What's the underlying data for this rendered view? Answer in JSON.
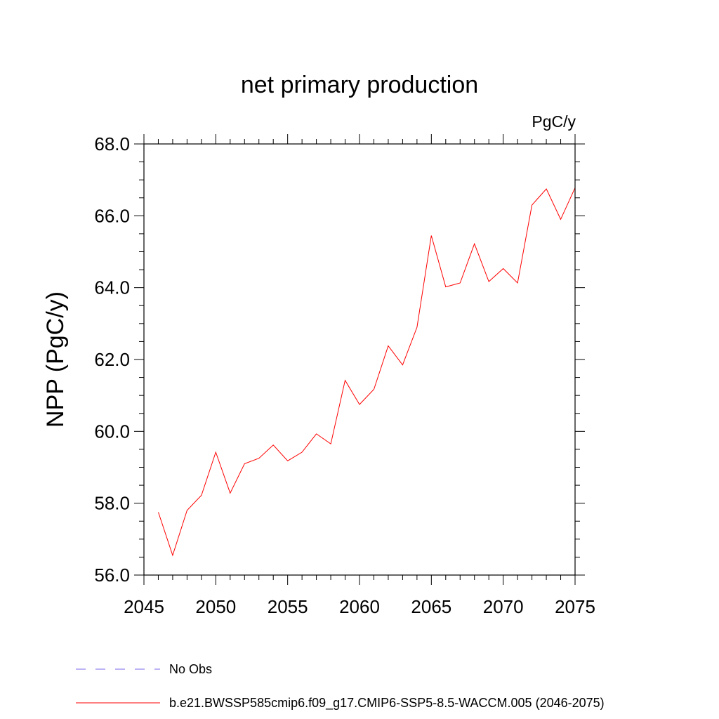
{
  "chart_data": {
    "type": "line",
    "title": "net primary production",
    "units_label": "PgC/y",
    "xlabel": "",
    "ylabel": "NPP  (PgC/y)",
    "xlim": [
      2045,
      2075
    ],
    "ylim": [
      56.0,
      68.0
    ],
    "x_ticks": [
      2045,
      2050,
      2055,
      2060,
      2065,
      2070,
      2075
    ],
    "x_tick_labels": [
      "2045",
      "2050",
      "2055",
      "2060",
      "2065",
      "2070",
      "2075"
    ],
    "y_ticks": [
      56,
      58,
      60,
      62,
      64,
      66,
      68
    ],
    "y_tick_labels": [
      "56.0",
      "58.0",
      "60.0",
      "62.0",
      "64.0",
      "66.0",
      "68.0"
    ],
    "grid": false,
    "legend_position": "bottom",
    "series": [
      {
        "name": "b.e21.BWSSP585cmip6.f09_g17.CMIP6-SSP5-8.5-WACCM.005 (2046-2075)",
        "color": "#ff0000",
        "x": [
          2046,
          2047,
          2048,
          2049,
          2050,
          2051,
          2052,
          2053,
          2054,
          2055,
          2056,
          2057,
          2058,
          2059,
          2060,
          2061,
          2062,
          2063,
          2064,
          2065,
          2066,
          2067,
          2068,
          2069,
          2070,
          2071,
          2072,
          2073,
          2074,
          2075
        ],
        "y": [
          57.75,
          56.55,
          57.8,
          58.22,
          59.42,
          58.28,
          59.1,
          59.25,
          59.62,
          59.18,
          59.42,
          59.93,
          59.65,
          61.42,
          60.75,
          61.17,
          62.38,
          61.85,
          62.9,
          65.45,
          64.02,
          64.13,
          65.22,
          64.17,
          64.53,
          64.13,
          66.3,
          66.75,
          65.9,
          66.78
        ]
      }
    ],
    "legend": [
      {
        "label": "No Obs",
        "color": "#7b68ee",
        "dash": true
      },
      {
        "label": "b.e21.BWSSP585cmip6.f09_g17.CMIP6-SSP5-8.5-WACCM.005 (2046-2075)",
        "color": "#ff0000",
        "dash": false
      }
    ]
  }
}
